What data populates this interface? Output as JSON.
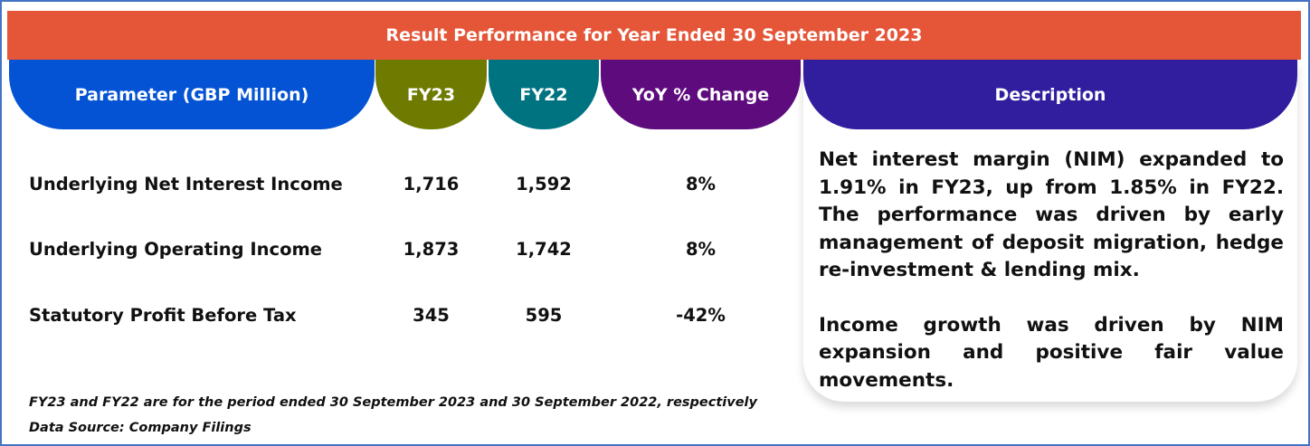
{
  "title": "Result Performance for Year Ended 30 September 2023",
  "headers": [
    "Parameter (GBP Million)",
    "FY23",
    "FY22",
    "YoY % Change",
    "Description"
  ],
  "colors": {
    "banner": "#e55538",
    "parameter": "#0453d4",
    "fy23": "#6e7b00",
    "fy22": "#007380",
    "yoy": "#5e0b7e",
    "description": "#311e9f"
  },
  "rows": [
    {
      "parameter": "Underlying Net Interest Income",
      "fy23": "1,716",
      "fy22": "1,592",
      "yoy": "8%"
    },
    {
      "parameter": "Underlying Operating Income",
      "fy23": "1,873",
      "fy22": "1,742",
      "yoy": "8%"
    },
    {
      "parameter": "Statutory Profit Before Tax",
      "fy23": "345",
      "fy22": "595",
      "yoy": "-42%"
    }
  ],
  "description": [
    "Net interest margin (NIM) expanded to 1.91% in FY23, up from 1.85% in FY22. The performance was driven by early management of deposit migration, hedge re-investment & lending mix.",
    "Income growth was driven by NIM expansion and positive fair value movements."
  ],
  "notes": {
    "period": "FY23 and FY22 are for the period ended 30 September 2023 and 30 September 2022, respectively",
    "source": "Data Source: Company Filings"
  }
}
